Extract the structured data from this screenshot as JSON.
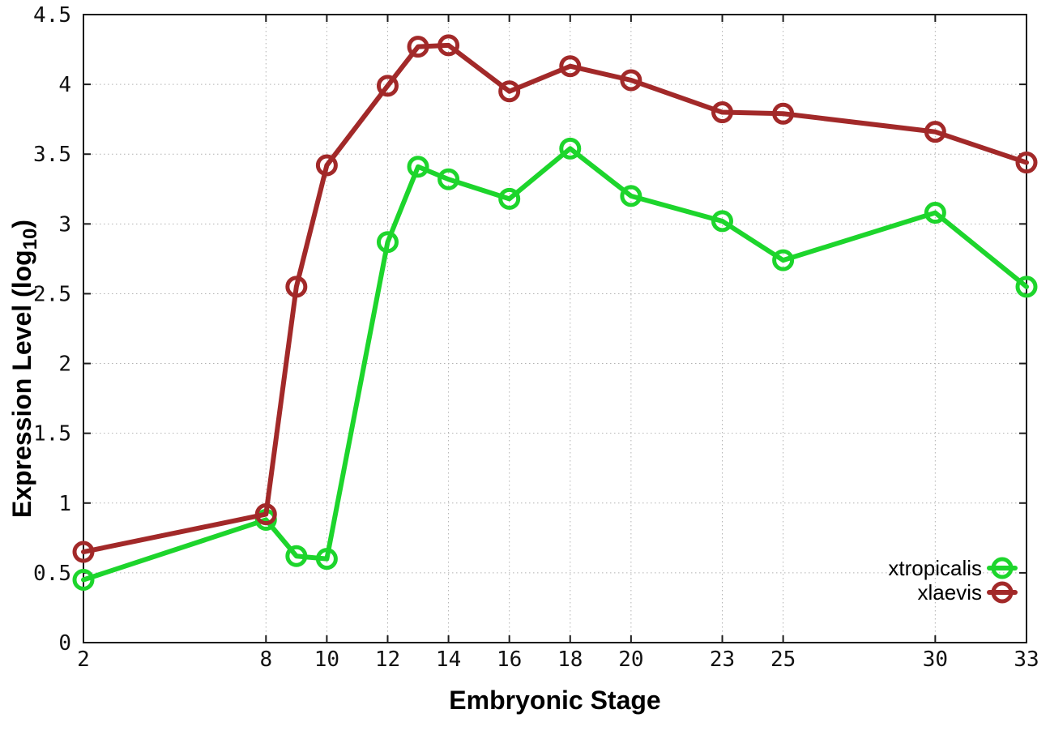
{
  "chart_data": {
    "type": "line",
    "title": "",
    "xlabel": "Embryonic Stage",
    "ylabel": "Expression Level (log10)",
    "ylabel_parts": {
      "main": "Expression Level (log",
      "sub": "10",
      "suffix": ")"
    },
    "x": [
      2,
      8,
      9,
      10,
      12,
      13,
      14,
      16,
      18,
      20,
      23,
      25,
      30,
      33
    ],
    "series": [
      {
        "name": "xtropicalis",
        "color": "#1dd52c",
        "values": [
          0.45,
          0.88,
          0.62,
          0.6,
          2.87,
          3.41,
          3.32,
          3.18,
          3.54,
          3.2,
          3.02,
          2.74,
          3.08,
          2.55
        ]
      },
      {
        "name": "xlaevis",
        "color": "#a22929",
        "values": [
          0.65,
          0.92,
          2.55,
          3.42,
          3.99,
          4.27,
          4.28,
          3.95,
          4.13,
          4.03,
          3.8,
          3.79,
          3.66,
          3.44
        ]
      }
    ],
    "x_tick_labels": [
      "2",
      "8",
      "10",
      "12",
      "14",
      "16",
      "18",
      "20",
      "23",
      "25",
      "30",
      "33"
    ],
    "x_tick_values": [
      2,
      8,
      10,
      12,
      14,
      16,
      18,
      20,
      23,
      25,
      30,
      33
    ],
    "y_tick_labels": [
      "0",
      "0.5",
      "1",
      "1.5",
      "2",
      "2.5",
      "3",
      "3.5",
      "4",
      "4.5"
    ],
    "y_tick_values": [
      0,
      0.5,
      1,
      1.5,
      2,
      2.5,
      3,
      3.5,
      4,
      4.5
    ],
    "xlim": [
      2,
      33
    ],
    "ylim": [
      0,
      4.5
    ],
    "grid": true,
    "legend_position": "bottom-right",
    "marker": "open-circle"
  },
  "legend": {
    "entries": [
      {
        "label": "xtropicalis",
        "color": "#1dd52c"
      },
      {
        "label": "xlaevis",
        "color": "#a22929"
      }
    ]
  },
  "colors": {
    "background": "#ffffff",
    "grid": "#b2b2b2",
    "border": "#1c1c1c",
    "text": "#111111"
  }
}
